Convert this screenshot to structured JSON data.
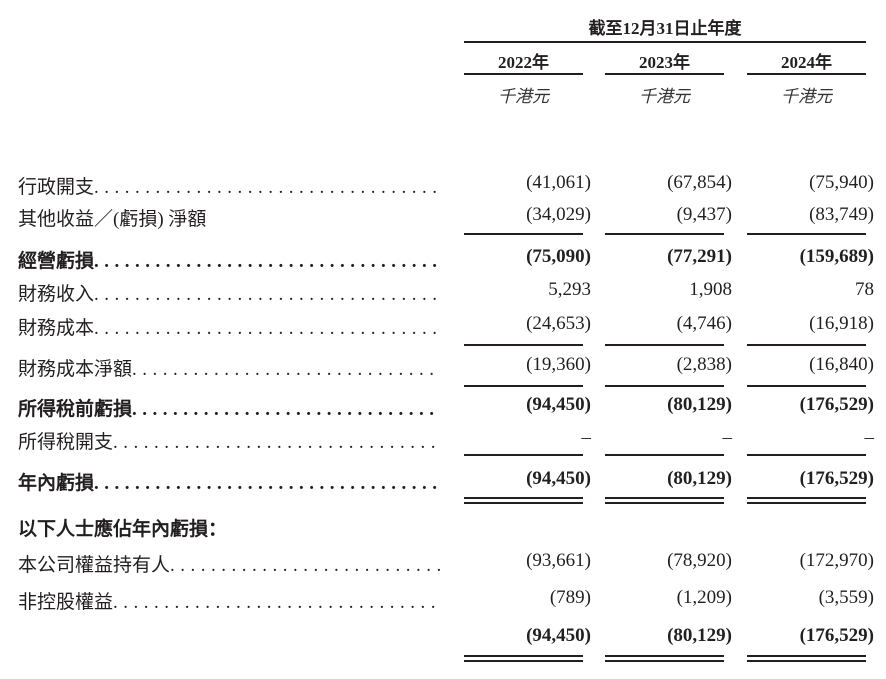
{
  "header": {
    "period": "截至12月31日止年度",
    "years": [
      "2022年",
      "2023年",
      "2024年"
    ],
    "units": [
      "千港元",
      "千港元",
      "千港元"
    ]
  },
  "rows": [
    {
      "label": "行政開支",
      "bold": false,
      "values": [
        "(41,061)",
        "(67,854)",
        "(75,940)"
      ]
    },
    {
      "label": "其他收益／(虧損) 淨額",
      "bold": false,
      "values": [
        "(34,029)",
        "(9,437)",
        "(83,749)"
      ]
    },
    {
      "label": "經營虧損",
      "bold": true,
      "values": [
        "(75,090)",
        "(77,291)",
        "(159,689)"
      ]
    },
    {
      "label": "財務收入",
      "bold": false,
      "values": [
        "5,293",
        "1,908",
        "78"
      ]
    },
    {
      "label": "財務成本",
      "bold": false,
      "values": [
        "(24,653)",
        "(4,746)",
        "(16,918)"
      ]
    },
    {
      "label": "財務成本淨額",
      "bold": false,
      "values": [
        "(19,360)",
        "(2,838)",
        "(16,840)"
      ]
    },
    {
      "label": "所得稅前虧損",
      "bold": true,
      "values": [
        "(94,450)",
        "(80,129)",
        "(176,529)"
      ]
    },
    {
      "label": "所得稅開支",
      "bold": false,
      "values": [
        "–",
        "–",
        "–"
      ]
    },
    {
      "label": "年內虧損",
      "bold": true,
      "values": [
        "(94,450)",
        "(80,129)",
        "(176,529)"
      ]
    },
    {
      "label": "以下人士應佔年內虧損：",
      "bold": true,
      "values": []
    },
    {
      "label": "本公司權益持有人",
      "bold": false,
      "values": [
        "(93,661)",
        "(78,920)",
        "(172,970)"
      ]
    },
    {
      "label": "非控股權益",
      "bold": false,
      "values": [
        "(789)",
        "(1,209)",
        "(3,559)"
      ]
    },
    {
      "label": "",
      "bold": true,
      "values": [
        "(94,450)",
        "(80,129)",
        "(176,529)"
      ]
    }
  ]
}
